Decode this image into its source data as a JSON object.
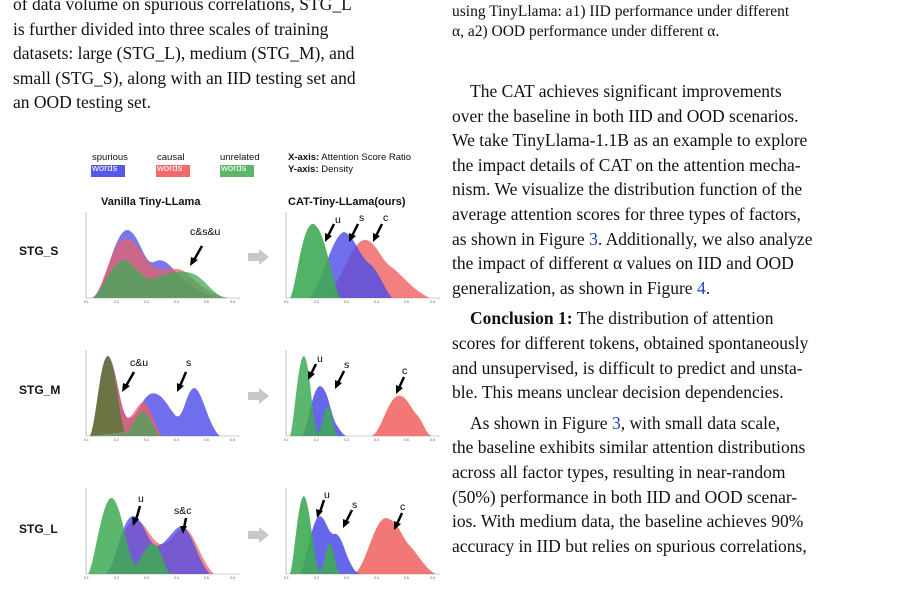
{
  "left_text": {
    "line1": "of data volume on spurious correlations, STG_L",
    "line2": "is further divided into three scales of training",
    "line3": "datasets: large (STG_L), medium (STG_M), and",
    "line4": "small (STG_S), along with an IID testing set and",
    "line5": "an OOD testing set."
  },
  "figure": {
    "legend": {
      "spurious_1": "spurious",
      "spurious_2": "words",
      "causal_1": "causal",
      "causal_2": "words",
      "unrelated_1": "unrelated",
      "unrelated_2": "words",
      "xaxis_key": "X-axis:",
      "xaxis_val": "Attention Score Ratio",
      "yaxis_key": "Y-axis:",
      "yaxis_val": "Density"
    },
    "col_titles": {
      "left": "Vanilla Tiny-LLama",
      "right": "CAT-Tiny-LLama(ours)"
    },
    "rows": [
      "STG_S",
      "STG_M",
      "STG_L"
    ],
    "annotations": {
      "s_left": "c&s&u",
      "m_left_1": "c&u",
      "m_left_2": "s",
      "l_left_1": "u",
      "l_left_2": "s&c",
      "right_u": "u",
      "right_s": "s",
      "right_c": "c"
    },
    "colors": {
      "spurious": "#4b4be8",
      "causal": "#f06060",
      "unrelated": "#3faa55",
      "arrow": "#c8c8c8"
    }
  },
  "right_text": {
    "cap1": "using TinyLlama: a1) IID performance under different",
    "cap2": "α, a2) OOD performance under different α.",
    "p1": [
      "The CAT achieves significant improvements",
      "over the baseline in both IID and OOD scenarios.",
      "We take TinyLlama-1.1B as an example to explore",
      "the impact details of CAT on the attention mecha-",
      "nism. We visualize the distribution function of the",
      "average attention scores for three types of factors,"
    ],
    "p1_l7a": "as shown in Figure ",
    "p1_ref1": "3",
    "p1_l7b": ". Additionally, we also analyze",
    "p1_l8": "the impact of different α values on IID and OOD",
    "p1_l9a": "generalization, as shown in Figure ",
    "p1_ref2": "4",
    "p1_l9b": ".",
    "c1_head": "Conclusion 1:",
    "c1_l1": " The distribution of attention",
    "c1_rest": [
      "scores for different tokens, obtained spontaneously",
      "and unsupervised, is difficult to predict and unsta-",
      "ble. This means unclear decision dependencies."
    ],
    "p3_l1a": "As shown in Figure ",
    "p3_ref": "3",
    "p3_l1b": ", with small data scale,",
    "p3_rest": [
      "the baseline exhibits similar attention distributions",
      "across all factor types, resulting in near-random",
      "(50%) performance in both IID and OOD scenar-",
      "ios. With medium data, the baseline achieves 90%",
      "accuracy in IID but relies on spurious correlations,"
    ]
  }
}
